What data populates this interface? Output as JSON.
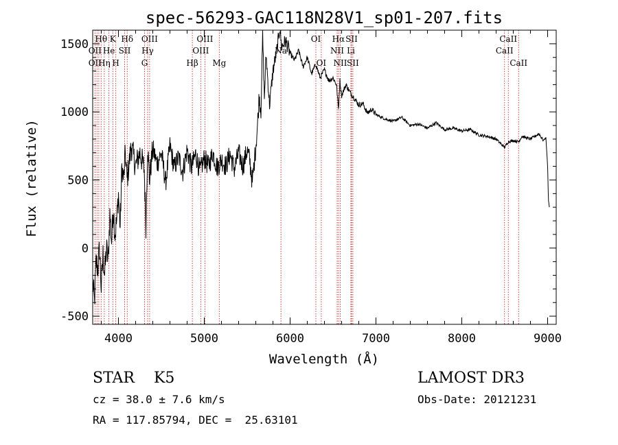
{
  "chart_data": {
    "type": "line",
    "title": "spec-56293-GAC118N28V1_sp01-207.fits",
    "xlabel": "Wavelength (Å)",
    "ylabel": "Flux (relative)",
    "xlim": [
      3700,
      9100
    ],
    "ylim": [
      -560,
      1600
    ],
    "xticks": [
      4000,
      5000,
      6000,
      7000,
      8000,
      9000
    ],
    "yticks": [
      -500,
      0,
      500,
      1000,
      1500
    ],
    "grid": false,
    "series": [
      {
        "name": "flux",
        "x": [
          3700,
          3720,
          3740,
          3760,
          3780,
          3800,
          3820,
          3840,
          3860,
          3880,
          3900,
          3920,
          3940,
          3960,
          3980,
          4000,
          4020,
          4040,
          4060,
          4080,
          4100,
          4150,
          4200,
          4250,
          4300,
          4320,
          4340,
          4360,
          4400,
          4450,
          4500,
          4550,
          4600,
          4650,
          4700,
          4750,
          4800,
          4850,
          4900,
          4950,
          5000,
          5050,
          5100,
          5150,
          5200,
          5250,
          5300,
          5350,
          5400,
          5450,
          5500,
          5530,
          5560,
          5600,
          5620,
          5640,
          5660,
          5680,
          5700,
          5720,
          5760,
          5800,
          5850,
          5880,
          5900,
          5950,
          6000,
          6050,
          6100,
          6150,
          6200,
          6250,
          6300,
          6350,
          6400,
          6450,
          6500,
          6540,
          6563,
          6580,
          6600,
          6650,
          6700,
          6750,
          6800,
          6850,
          6900,
          6950,
          7000,
          7100,
          7200,
          7300,
          7400,
          7500,
          7600,
          7700,
          7800,
          7900,
          8000,
          8100,
          8200,
          8300,
          8400,
          8498,
          8542,
          8600,
          8662,
          8700,
          8800,
          8900,
          8950,
          8980,
          9000,
          9010,
          9020
        ],
        "y": [
          -250,
          -400,
          -100,
          -150,
          0,
          -300,
          -50,
          -200,
          0,
          -100,
          250,
          50,
          300,
          100,
          200,
          400,
          150,
          600,
          500,
          700,
          500,
          750,
          600,
          700,
          580,
          170,
          760,
          500,
          730,
          620,
          700,
          480,
          750,
          590,
          670,
          560,
          720,
          590,
          690,
          560,
          660,
          600,
          700,
          590,
          650,
          600,
          690,
          580,
          700,
          600,
          720,
          640,
          480,
          750,
          900,
          1120,
          1000,
          1560,
          1100,
          1420,
          1050,
          1300,
          1470,
          1620,
          1480,
          1520,
          1430,
          1380,
          1450,
          1330,
          1400,
          1280,
          1350,
          1250,
          1310,
          1230,
          1250,
          1200,
          1020,
          1230,
          1120,
          1200,
          1140,
          1100,
          1050,
          1060,
          990,
          1020,
          980,
          950,
          930,
          960,
          900,
          910,
          880,
          920,
          870,
          880,
          860,
          870,
          830,
          820,
          800,
          740,
          780,
          790,
          780,
          820,
          800,
          840,
          790,
          810,
          600,
          350,
          300
        ]
      }
    ],
    "lines": {
      "color": "#c62828",
      "labels": [
        {
          "text": "Hθ",
          "row": 1,
          "x": 3798
        },
        {
          "text": "OII",
          "row": 2,
          "x": 3727
        },
        {
          "text": "OII",
          "row": 3,
          "x": 3727
        },
        {
          "text": "Hη",
          "row": 3,
          "x": 3835
        },
        {
          "text": "He",
          "row": 2,
          "x": 3889
        },
        {
          "text": "K",
          "row": 1,
          "x": 3934
        },
        {
          "text": "H",
          "row": 3,
          "x": 3969
        },
        {
          "text": "SII",
          "row": 2,
          "x": 4072
        },
        {
          "text": "Hδ",
          "row": 1,
          "x": 4102
        },
        {
          "text": "OIII",
          "row": 1,
          "x": 4363
        },
        {
          "text": "Hγ",
          "row": 2,
          "x": 4340
        },
        {
          "text": "G",
          "row": 3,
          "x": 4304
        },
        {
          "text": "Hβ",
          "row": 3,
          "x": 4861
        },
        {
          "text": "OIII",
          "row": 1,
          "x": 5007
        },
        {
          "text": "OIII",
          "row": 2,
          "x": 4959
        },
        {
          "text": "Mg",
          "row": 3,
          "x": 5175
        },
        {
          "text": "Na",
          "row": 2,
          "x": 5893
        },
        {
          "text": "OI",
          "row": 1,
          "x": 6300
        },
        {
          "text": "OI",
          "row": 3,
          "x": 6363
        },
        {
          "text": "Hα",
          "row": 1,
          "x": 6563
        },
        {
          "text": "NII",
          "row": 2,
          "x": 6548
        },
        {
          "text": "NII",
          "row": 3,
          "x": 6584
        },
        {
          "text": "SII",
          "row": 1,
          "x": 6716
        },
        {
          "text": "Li",
          "row": 2,
          "x": 6708
        },
        {
          "text": "SII",
          "row": 3,
          "x": 6731
        },
        {
          "text": "CaII",
          "row": 1,
          "x": 8542
        },
        {
          "text": "CaII",
          "row": 2,
          "x": 8498
        },
        {
          "text": "CaII",
          "row": 3,
          "x": 8662
        }
      ],
      "positions": [
        3727,
        3750,
        3771,
        3798,
        3835,
        3889,
        3934,
        3969,
        4072,
        4102,
        4304,
        4340,
        4363,
        4861,
        4959,
        5007,
        5175,
        5893,
        6300,
        6363,
        6548,
        6563,
        6584,
        6708,
        6716,
        6731,
        8498,
        8542,
        8662
      ]
    }
  },
  "info": {
    "object": "STAR    K5",
    "cz": "cz = 38.0 ± 7.6 km/s",
    "radec": "RA = 117.85794, DEC =  25.63101",
    "survey": "LAMOST DR3",
    "obsdate": "Obs-Date: 20121231"
  }
}
